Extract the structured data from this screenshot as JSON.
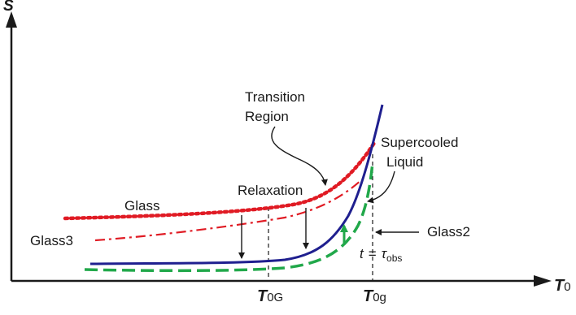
{
  "axes": {
    "y_label": "S",
    "x_label_main": "T",
    "x_label_sub": "0"
  },
  "ticks": {
    "t0G_main": "T",
    "t0G_sub": "0G",
    "t0g_main": "T",
    "t0g_sub": "0g"
  },
  "labels": {
    "transition_line1": "Transition",
    "transition_line2": "Region",
    "supercooled_line1": "Supercooled",
    "supercooled_line2": "Liquid",
    "relaxation": "Relaxation",
    "glass": "Glass",
    "glass3": "Glass3",
    "glass2": "Glass2",
    "tau_t": "t",
    "tau_eq": "=",
    "tau_sym": "τ",
    "tau_sub": "obs"
  },
  "colors": {
    "axis": "#1a1a1a",
    "liquid_curve": "#1f1f8f",
    "glass_curve": "#e01b24",
    "glass2_curve": "#21a84a",
    "arrow": "#1a1a1a"
  }
}
